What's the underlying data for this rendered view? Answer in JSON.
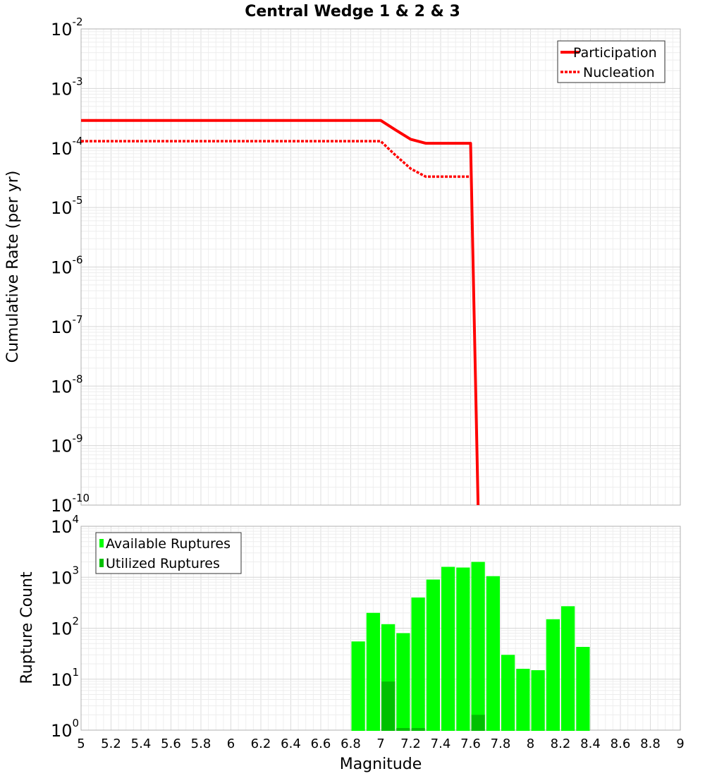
{
  "chart_data": [
    {
      "type": "line",
      "title": "Central Wedge 1 & 2 & 3",
      "ylabel": "Cumulative Rate (per yr)",
      "yscale": "log",
      "ylim": [
        1e-10,
        0.01
      ],
      "xlim": [
        5,
        9
      ],
      "y_tick_exponents": [
        "-2",
        "-3",
        "-4",
        "-5",
        "-6",
        "-7",
        "-8",
        "-9",
        "-10"
      ],
      "grid": true,
      "legend_position": "top-right",
      "series": [
        {
          "name": "Participation",
          "color": "#ff0000",
          "style": "solid",
          "x": [
            5.0,
            7.0,
            7.1,
            7.2,
            7.3,
            7.4,
            7.5,
            7.6,
            7.65
          ],
          "y": [
            0.00029,
            0.00029,
            0.0002,
            0.00014,
            0.00012,
            0.00012,
            0.00012,
            0.00012,
            1e-10
          ]
        },
        {
          "name": "Nucleation",
          "color": "#ff0000",
          "style": "dotted",
          "x": [
            5.0,
            7.0,
            7.1,
            7.2,
            7.3,
            7.4,
            7.5,
            7.6
          ],
          "y": [
            0.00013,
            0.00013,
            7.5e-05,
            4.5e-05,
            3.3e-05,
            3.3e-05,
            3.3e-05,
            3.3e-05
          ]
        }
      ]
    },
    {
      "type": "bar",
      "ylabel": "Rupture Count",
      "xlabel": "Magnitude",
      "yscale": "log",
      "ylim": [
        1,
        10000
      ],
      "xlim": [
        5,
        9
      ],
      "y_tick_exponents": [
        "4",
        "3",
        "2",
        "1",
        "0"
      ],
      "x_ticks": [
        "5",
        "5.2",
        "5.4",
        "5.6",
        "5.8",
        "6",
        "6.2",
        "6.4",
        "6.6",
        "6.8",
        "7",
        "7.2",
        "7.4",
        "7.6",
        "7.8",
        "8",
        "8.2",
        "8.4",
        "8.6",
        "8.8",
        "9"
      ],
      "grid": true,
      "legend_position": "top-left",
      "categories": [
        "6.85",
        "6.95",
        "7.05",
        "7.15",
        "7.25",
        "7.35",
        "7.45",
        "7.55",
        "7.65",
        "7.75",
        "7.85",
        "7.95",
        "8.05",
        "8.15",
        "8.25",
        "8.35"
      ],
      "series": [
        {
          "name": "Available Ruptures",
          "color": "#00ff00",
          "values": [
            55,
            200,
            120,
            80,
            400,
            900,
            1600,
            1550,
            2000,
            1050,
            30,
            16,
            15,
            150,
            270,
            43
          ]
        },
        {
          "name": "Utilized Ruptures",
          "color": "#00c000",
          "values": [
            0,
            0,
            9,
            1.1,
            1.1,
            0,
            0,
            0,
            2,
            0,
            0,
            0,
            0,
            0,
            0,
            0
          ]
        }
      ]
    }
  ]
}
